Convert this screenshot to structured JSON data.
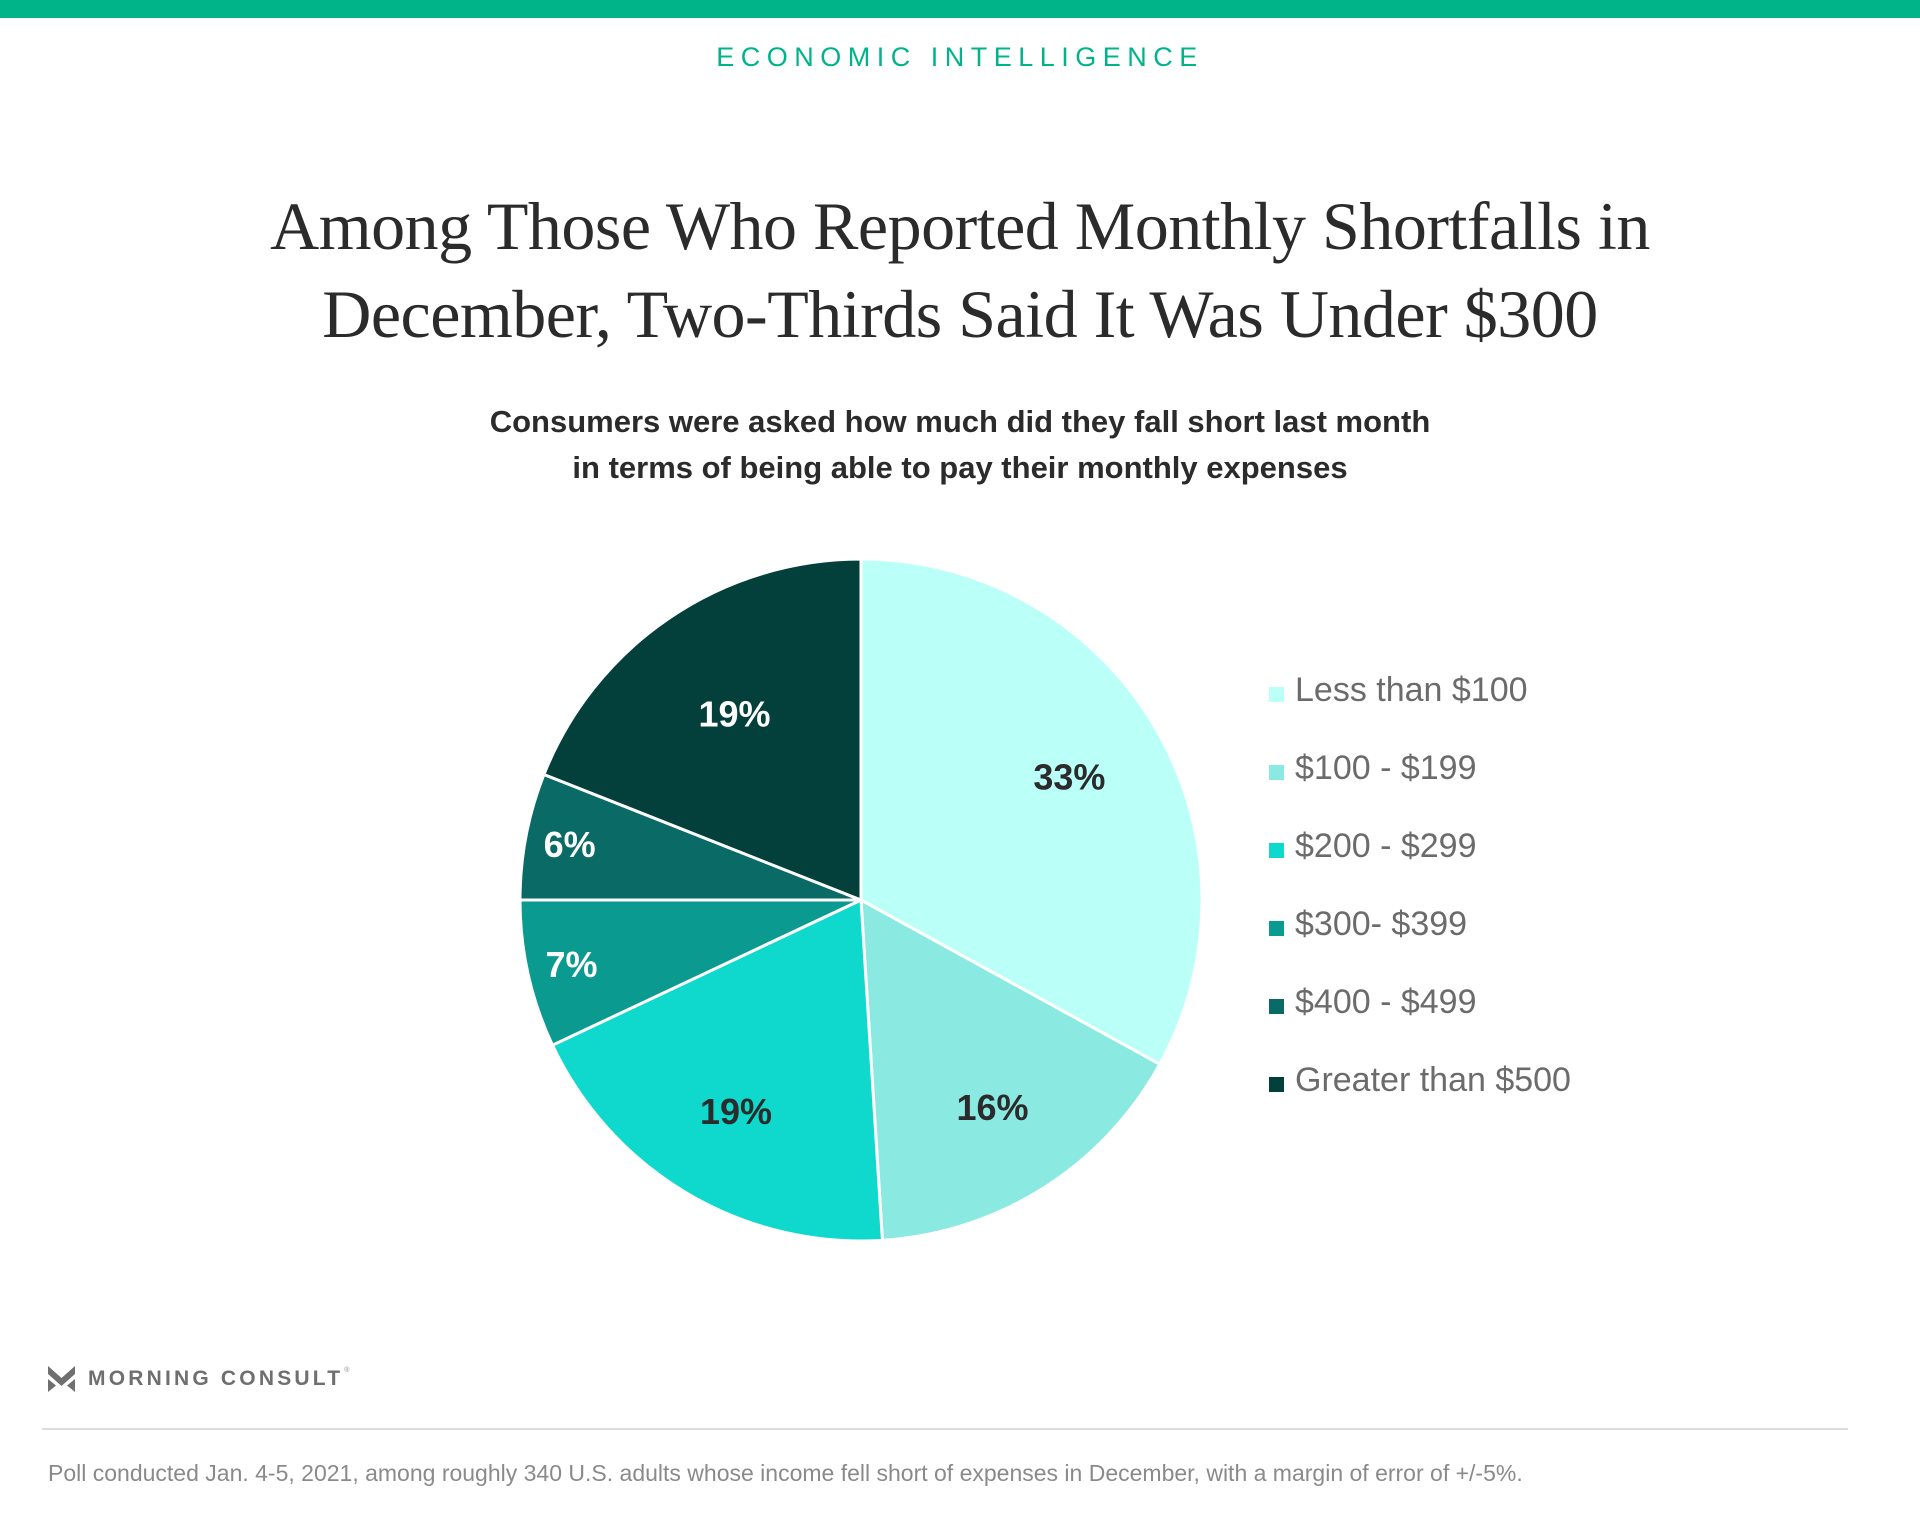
{
  "header": {
    "kicker": "ECONOMIC INTELLIGENCE",
    "title_line1": "Among Those Who Reported Monthly Shortfalls in",
    "title_line2": "December, Two-Thirds Said It Was Under $300",
    "subtitle_line1": "Consumers were asked how much did they fall short last month",
    "subtitle_line2": "in terms of being able to pay their monthly expenses"
  },
  "colors": {
    "brand_accent": "#00b48a",
    "label_dark": "#2b2b2b",
    "label_light": "#ffffff"
  },
  "chart_data": {
    "type": "pie",
    "title": "Among Those Who Reported Monthly Shortfalls in December, Two-Thirds Said It Was Under $300",
    "subtitle": "Consumers were asked how much did they fall short last month in terms of being able to pay their monthly expenses",
    "start": "12 o'clock",
    "direction": "clockwise",
    "legend_position": "right",
    "slices": [
      {
        "label": "Less than $100",
        "value": 33,
        "display": "33%",
        "color": "#bafff8",
        "label_color": "#2b2b2b"
      },
      {
        "label": "$100 - $199",
        "value": 16,
        "display": "16%",
        "color": "#8aeae2",
        "label_color": "#2b2b2b"
      },
      {
        "label": "$200 - $299",
        "value": 19,
        "display": "19%",
        "color": "#0fd8cc",
        "label_color": "#2b2b2b"
      },
      {
        "label": "$300- $399",
        "value": 7,
        "display": "7%",
        "color": "#0a9a90",
        "label_color": "#ffffff"
      },
      {
        "label": "$400 - $499",
        "value": 6,
        "display": "6%",
        "color": "#096a66",
        "label_color": "#ffffff"
      },
      {
        "label": "Greater than $500",
        "value": 19,
        "display": "19%",
        "color": "#033f3b",
        "label_color": "#ffffff"
      }
    ]
  },
  "footer": {
    "brand": "MORNING CONSULT",
    "registered": "®",
    "note": "Poll conducted Jan. 4-5, 2021, among roughly 340 U.S. adults whose income fell short of expenses in December, with a margin of error of +/-5%."
  }
}
